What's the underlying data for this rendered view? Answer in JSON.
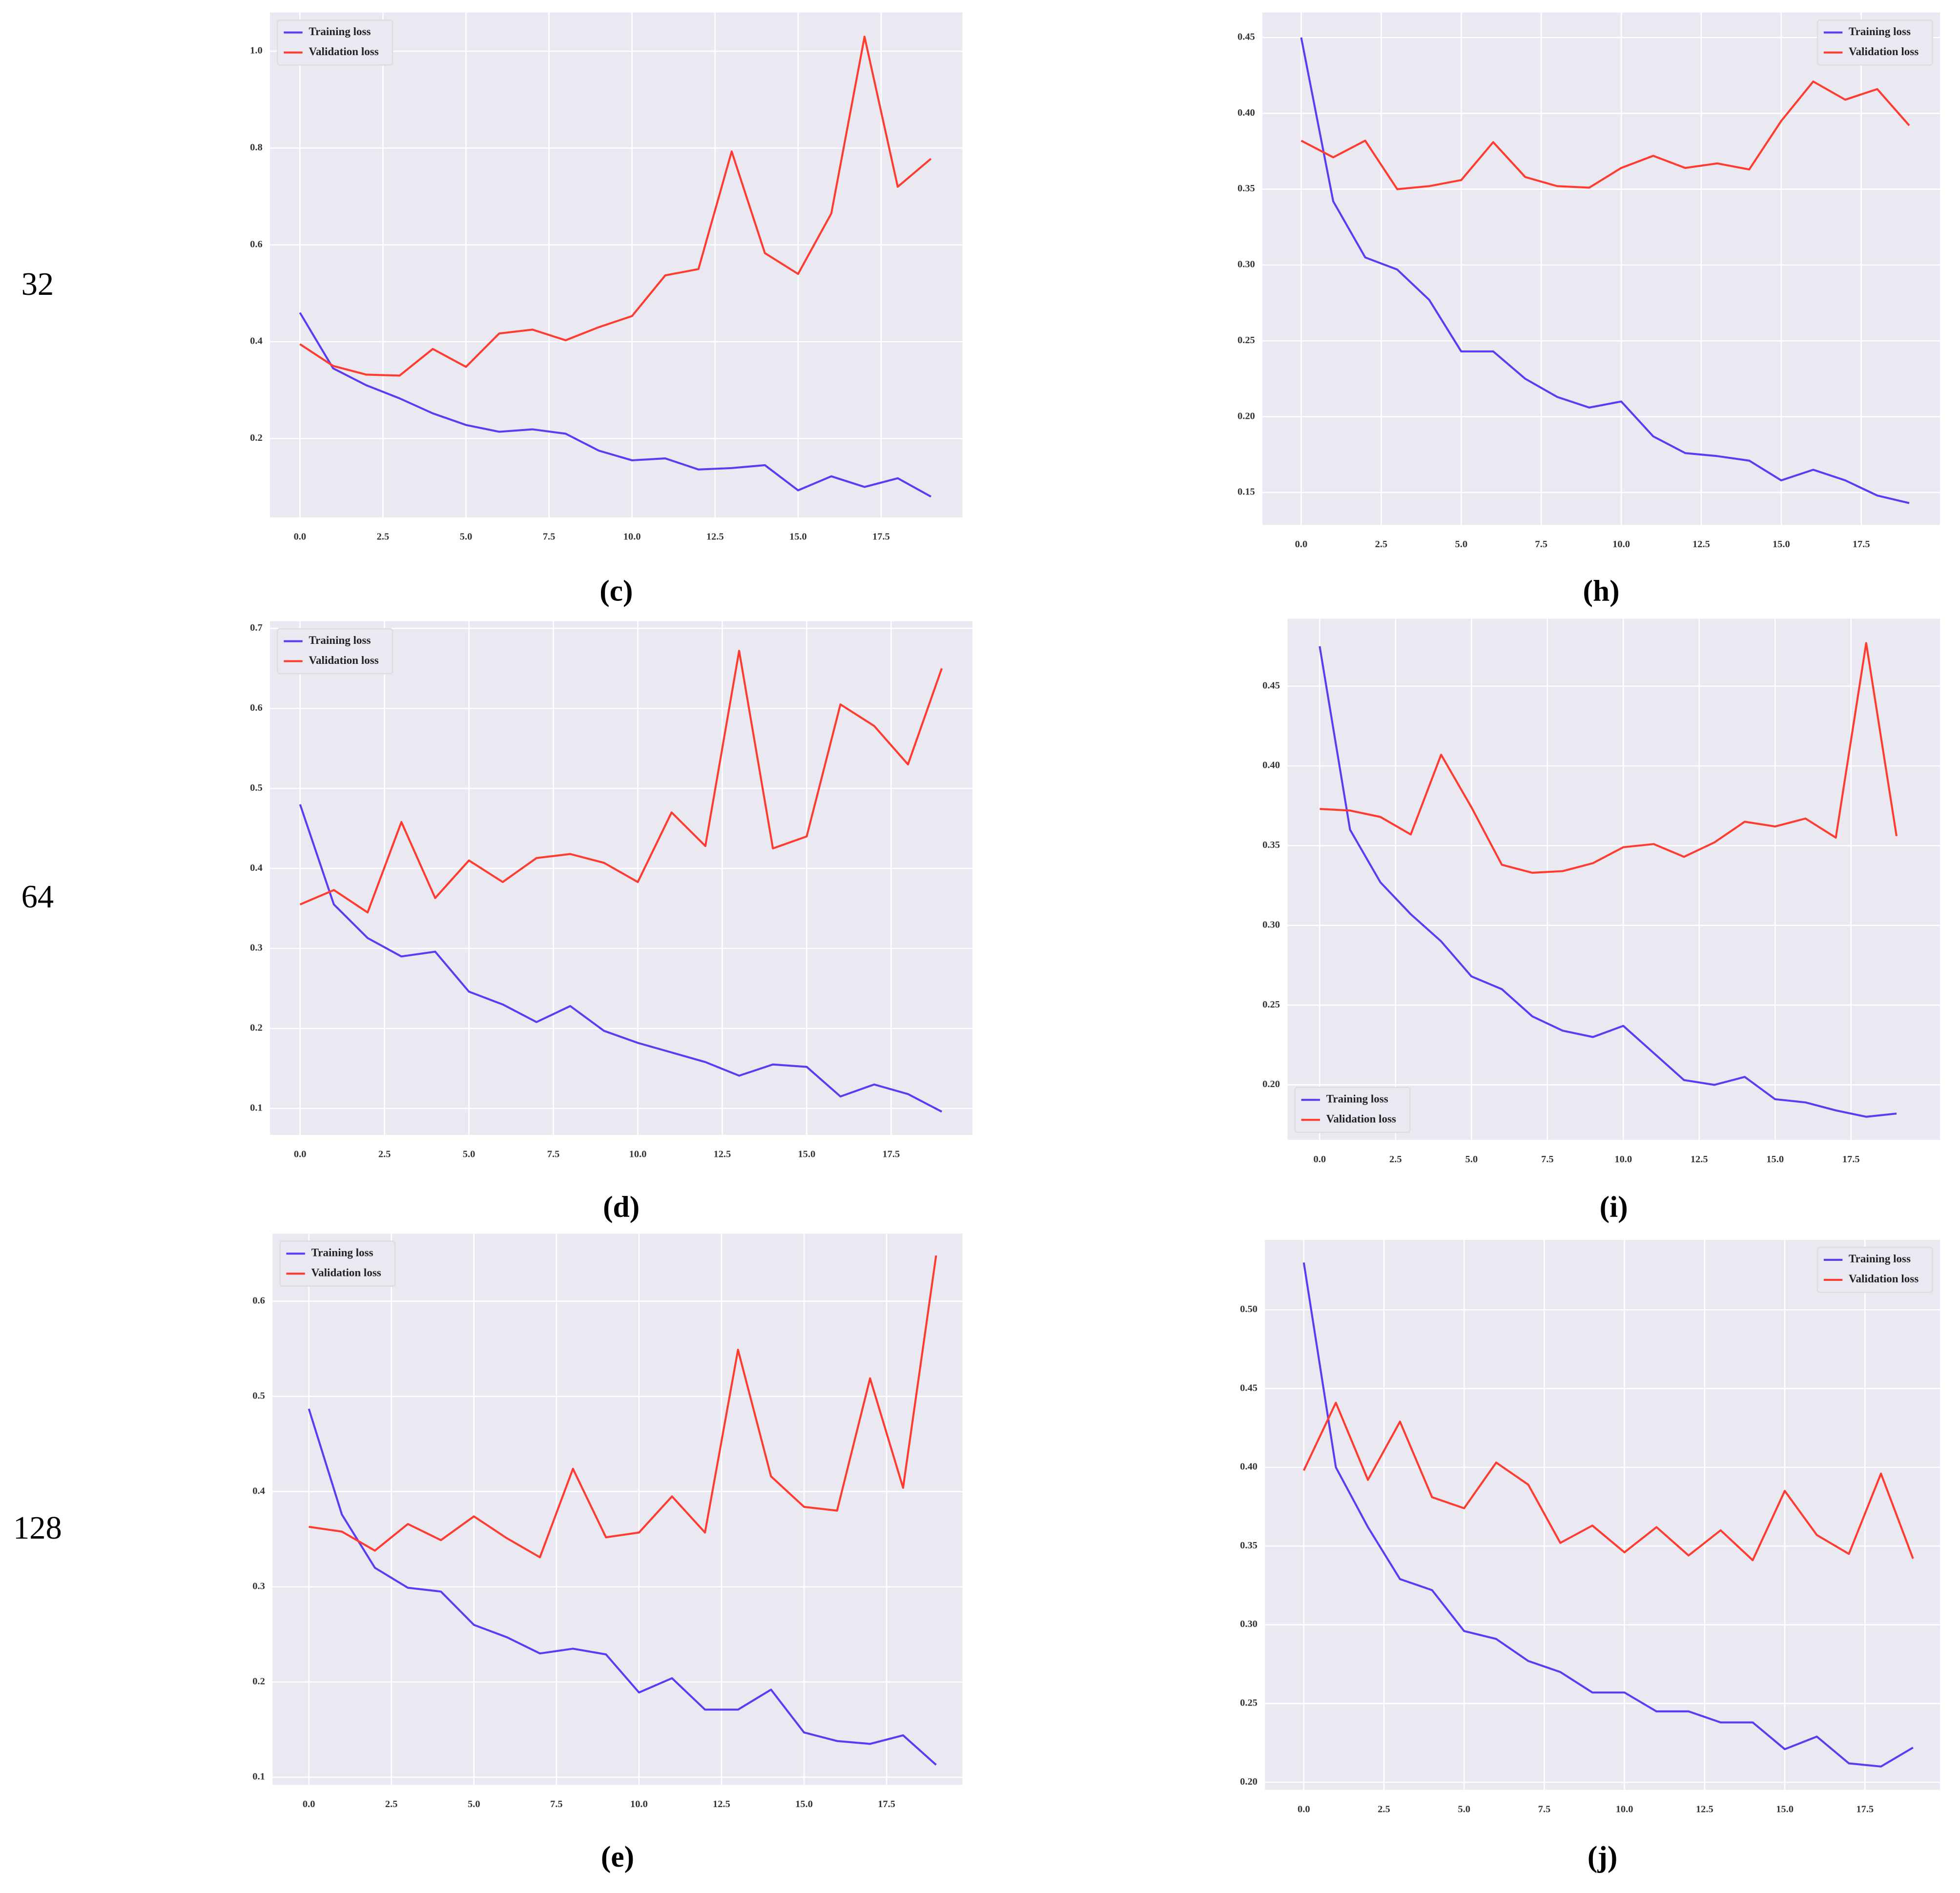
{
  "row_labels": [
    "32",
    "64",
    "128"
  ],
  "chart_data": [
    {
      "type": "line",
      "label": "(c)",
      "legend": "upper left",
      "grid": true,
      "x": [
        0,
        1,
        2,
        3,
        4,
        5,
        6,
        7,
        8,
        9,
        10,
        11,
        12,
        13,
        14,
        15,
        16,
        17,
        18,
        19
      ],
      "xlim": [
        -0.9,
        19.95
      ],
      "xticks": [
        {
          "value": 0,
          "label": "0.0"
        },
        2.5,
        {
          "value": 5,
          "label": "5.0"
        },
        7.5,
        {
          "value": 10,
          "label": "10.0"
        },
        12.5,
        {
          "value": 15,
          "label": "15.0"
        },
        17.5
      ],
      "ylim": [
        0.037,
        1.08
      ],
      "yticks": [
        0.2,
        0.4,
        0.6,
        0.8,
        {
          "value": 1,
          "label": "1.0"
        }
      ],
      "series": [
        {
          "name": "Training loss",
          "color": "#5b3cf5",
          "values": [
            0.46,
            0.345,
            0.31,
            0.283,
            0.252,
            0.228,
            0.214,
            0.219,
            0.21,
            0.175,
            0.155,
            0.159,
            0.136,
            0.139,
            0.145,
            0.093,
            0.122,
            0.1,
            0.118,
            0.08
          ]
        },
        {
          "name": "Validation loss",
          "color": "#ff3b2f",
          "values": [
            0.395,
            0.35,
            0.332,
            0.33,
            0.385,
            0.348,
            0.417,
            0.425,
            0.403,
            0.43,
            0.453,
            0.537,
            0.55,
            0.793,
            0.583,
            0.54,
            0.665,
            1.03,
            0.72,
            0.778
          ]
        }
      ]
    },
    {
      "type": "line",
      "label": "(h)",
      "legend": "upper right",
      "grid": true,
      "x": [
        0,
        1,
        2,
        3,
        4,
        5,
        6,
        7,
        8,
        9,
        10,
        11,
        12,
        13,
        14,
        15,
        16,
        17,
        18,
        19
      ],
      "xlim": [
        -1.21,
        19.96
      ],
      "xticks": [
        {
          "value": 0,
          "label": "0.0"
        },
        2.5,
        {
          "value": 5,
          "label": "5.0"
        },
        7.5,
        {
          "value": 10,
          "label": "10.0"
        },
        12.5,
        {
          "value": 15,
          "label": "15.0"
        },
        17.5
      ],
      "ylim": [
        0.1286,
        0.4665
      ],
      "yticks": [
        0.15,
        {
          "value": 0.2,
          "label": "0.20"
        },
        0.25,
        {
          "value": 0.3,
          "label": "0.30"
        },
        0.35,
        {
          "value": 0.4,
          "label": "0.40"
        },
        0.45
      ],
      "series": [
        {
          "name": "Training loss",
          "color": "#5b3cf5",
          "values": [
            0.45,
            0.342,
            0.305,
            0.297,
            0.277,
            0.243,
            0.243,
            0.225,
            0.213,
            0.206,
            0.21,
            0.187,
            0.176,
            0.174,
            0.171,
            0.158,
            0.165,
            0.158,
            0.148,
            0.143
          ]
        },
        {
          "name": "Validation loss",
          "color": "#ff3b2f",
          "values": [
            0.382,
            0.371,
            0.382,
            0.35,
            0.352,
            0.356,
            0.381,
            0.358,
            0.352,
            0.351,
            0.364,
            0.372,
            0.364,
            0.367,
            0.363,
            0.395,
            0.421,
            0.409,
            0.416,
            0.392
          ]
        }
      ]
    },
    {
      "type": "line",
      "label": "(d)",
      "legend": "upper left",
      "grid": true,
      "x": [
        0,
        1,
        2,
        3,
        4,
        5,
        6,
        7,
        8,
        9,
        10,
        11,
        12,
        13,
        14,
        15,
        16,
        17,
        18,
        19
      ],
      "xlim": [
        -0.89,
        19.91
      ],
      "xticks": [
        {
          "value": 0,
          "label": "0.0"
        },
        2.5,
        {
          "value": 5,
          "label": "5.0"
        },
        7.5,
        {
          "value": 10,
          "label": "10.0"
        },
        12.5,
        {
          "value": 15,
          "label": "15.0"
        },
        17.5
      ],
      "ylim": [
        0.067,
        0.709
      ],
      "yticks": [
        0.1,
        0.2,
        0.3,
        0.4,
        0.5,
        0.6,
        0.7
      ],
      "series": [
        {
          "name": "Training loss",
          "color": "#5b3cf5",
          "values": [
            0.48,
            0.355,
            0.313,
            0.29,
            0.296,
            0.246,
            0.23,
            0.208,
            0.228,
            0.197,
            0.182,
            0.17,
            0.158,
            0.141,
            0.155,
            0.152,
            0.115,
            0.13,
            0.118,
            0.096
          ]
        },
        {
          "name": "Validation loss",
          "color": "#ff3b2f",
          "values": [
            0.355,
            0.373,
            0.345,
            0.458,
            0.363,
            0.41,
            0.383,
            0.413,
            0.418,
            0.407,
            0.383,
            0.47,
            0.428,
            0.672,
            0.425,
            0.44,
            0.605,
            0.578,
            0.53,
            0.65
          ]
        }
      ]
    },
    {
      "type": "line",
      "label": "(i)",
      "legend": "lower left",
      "grid": true,
      "x": [
        0,
        1,
        2,
        3,
        4,
        5,
        6,
        7,
        8,
        9,
        10,
        11,
        12,
        13,
        14,
        15,
        16,
        17,
        18,
        19
      ],
      "xlim": [
        -1.06,
        20.43
      ],
      "xticks": [
        {
          "value": 0,
          "label": "0.0"
        },
        2.5,
        {
          "value": 5,
          "label": "5.0"
        },
        7.5,
        {
          "value": 10,
          "label": "10.0"
        },
        12.5,
        {
          "value": 15,
          "label": "15.0"
        },
        17.5
      ],
      "ylim": [
        0.1655,
        0.4923
      ],
      "yticks": [
        {
          "value": 0.2,
          "label": "0.20"
        },
        0.25,
        {
          "value": 0.3,
          "label": "0.30"
        },
        0.35,
        {
          "value": 0.4,
          "label": "0.40"
        },
        0.45
      ],
      "series": [
        {
          "name": "Training loss",
          "color": "#5b3cf5",
          "values": [
            0.475,
            0.36,
            0.327,
            0.307,
            0.29,
            0.268,
            0.26,
            0.243,
            0.234,
            0.23,
            0.237,
            0.22,
            0.203,
            0.2,
            0.205,
            0.191,
            0.189,
            0.184,
            0.18,
            0.182
          ]
        },
        {
          "name": "Validation loss",
          "color": "#ff3b2f",
          "values": [
            0.373,
            0.372,
            0.368,
            0.357,
            0.407,
            0.374,
            0.338,
            0.333,
            0.334,
            0.339,
            0.349,
            0.351,
            0.343,
            0.352,
            0.365,
            0.362,
            0.367,
            0.355,
            0.477,
            0.356
          ]
        }
      ]
    },
    {
      "type": "line",
      "label": "(e)",
      "legend": "upper left",
      "grid": true,
      "x": [
        0,
        1,
        2,
        3,
        4,
        5,
        6,
        7,
        8,
        9,
        10,
        11,
        12,
        13,
        14,
        15,
        16,
        17,
        18,
        19
      ],
      "xlim": [
        -1.1,
        19.8
      ],
      "xticks": [
        {
          "value": 0,
          "label": "0.0"
        },
        2.5,
        {
          "value": 5,
          "label": "5.0"
        },
        7.5,
        {
          "value": 10,
          "label": "10.0"
        },
        12.5,
        {
          "value": 15,
          "label": "15.0"
        },
        17.5
      ],
      "ylim": [
        0.092,
        0.671
      ],
      "yticks": [
        0.1,
        0.2,
        0.3,
        0.4,
        0.5,
        0.6
      ],
      "series": [
        {
          "name": "Training loss",
          "color": "#5b3cf5",
          "values": [
            0.487,
            0.376,
            0.32,
            0.299,
            0.295,
            0.26,
            0.247,
            0.23,
            0.235,
            0.229,
            0.189,
            0.204,
            0.171,
            0.171,
            0.192,
            0.147,
            0.138,
            0.135,
            0.144,
            0.113
          ]
        },
        {
          "name": "Validation loss",
          "color": "#ff3b2f",
          "values": [
            0.363,
            0.358,
            0.338,
            0.366,
            0.349,
            0.374,
            0.351,
            0.331,
            0.424,
            0.352,
            0.357,
            0.395,
            0.357,
            0.549,
            0.416,
            0.384,
            0.38,
            0.519,
            0.404,
            0.648
          ]
        }
      ]
    },
    {
      "type": "line",
      "label": "(j)",
      "legend": "upper right",
      "grid": true,
      "x": [
        0,
        1,
        2,
        3,
        4,
        5,
        6,
        7,
        8,
        9,
        10,
        11,
        12,
        13,
        14,
        15,
        16,
        17,
        18,
        19
      ],
      "xlim": [
        -1.21,
        19.84
      ],
      "xticks": [
        {
          "value": 0,
          "label": "0.0"
        },
        2.5,
        {
          "value": 5,
          "label": "5.0"
        },
        7.5,
        {
          "value": 10,
          "label": "10.0"
        },
        12.5,
        {
          "value": 15,
          "label": "15.0"
        },
        17.5
      ],
      "ylim": [
        0.1952,
        0.5444
      ],
      "yticks": [
        {
          "value": 0.2,
          "label": "0.20"
        },
        0.25,
        {
          "value": 0.3,
          "label": "0.30"
        },
        0.35,
        {
          "value": 0.4,
          "label": "0.40"
        },
        0.45,
        {
          "value": 0.5,
          "label": "0.50"
        }
      ],
      "series": [
        {
          "name": "Training loss",
          "color": "#5b3cf5",
          "values": [
            0.53,
            0.4,
            0.362,
            0.329,
            0.322,
            0.296,
            0.291,
            0.277,
            0.27,
            0.257,
            0.257,
            0.245,
            0.245,
            0.238,
            0.238,
            0.221,
            0.229,
            0.212,
            0.21,
            0.222
          ]
        },
        {
          "name": "Validation loss",
          "color": "#ff3b2f",
          "values": [
            0.398,
            0.441,
            0.392,
            0.429,
            0.381,
            0.374,
            0.403,
            0.389,
            0.352,
            0.363,
            0.346,
            0.362,
            0.344,
            0.36,
            0.341,
            0.385,
            0.357,
            0.345,
            0.396,
            0.342
          ]
        }
      ]
    }
  ]
}
